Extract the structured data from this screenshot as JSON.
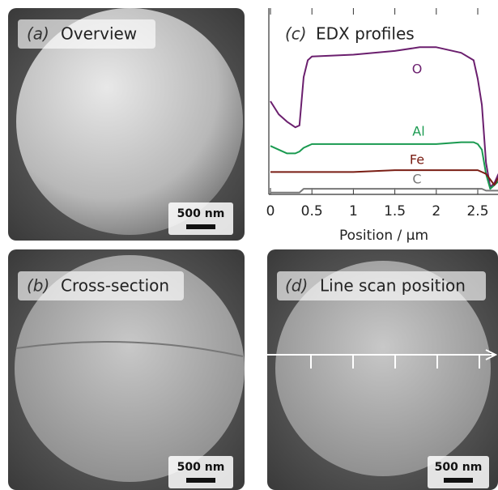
{
  "panels": [
    {
      "label": "(a)",
      "title": "Overview",
      "scale_bar": "500 nm"
    },
    {
      "label": "(b)",
      "title": "Cross-section",
      "scale_bar": "500 nm"
    },
    {
      "label": "(d)",
      "title": "Line scan position",
      "scale_bar": "500 nm"
    }
  ],
  "chart_data": {
    "type": "line",
    "label": "(c)",
    "title": "EDX profiles",
    "x_label": "Position / µm",
    "x": [
      0,
      0.1,
      0.2,
      0.3,
      0.35,
      0.4,
      0.45,
      0.5,
      1,
      1.5,
      1.8,
      2,
      2.3,
      2.45,
      2.5,
      2.55,
      2.6,
      2.65,
      2.7,
      2.75
    ],
    "xlim": [
      0,
      2.75
    ],
    "xticks": [
      0,
      0.5,
      1,
      1.5,
      2,
      2.5
    ],
    "ylim": [
      0,
      100
    ],
    "series": [
      {
        "name": "O",
        "color": "#6b1f6e",
        "values": [
          50,
          43,
          39,
          36,
          37,
          63,
          72,
          74,
          75,
          77,
          79,
          79,
          76,
          72,
          62,
          48,
          17,
          4,
          6,
          11
        ]
      },
      {
        "name": "Al",
        "color": "#1a9a50",
        "values": [
          26,
          24,
          22,
          22,
          23,
          25,
          26,
          27,
          27,
          27,
          27,
          27,
          28,
          28,
          27,
          24,
          11,
          3,
          5,
          7
        ]
      },
      {
        "name": "Fe",
        "color": "#7a1e14",
        "values": [
          12,
          12,
          12,
          12,
          12,
          12,
          12,
          12,
          12,
          13,
          13,
          13,
          13,
          13,
          13,
          12,
          11,
          8,
          5,
          9
        ]
      },
      {
        "name": "C",
        "color": "#777777",
        "values": [
          1,
          1,
          1,
          1,
          1,
          3,
          3,
          3,
          3,
          3,
          3,
          3,
          3,
          3,
          3,
          3,
          2,
          2,
          2,
          2
        ]
      }
    ]
  }
}
